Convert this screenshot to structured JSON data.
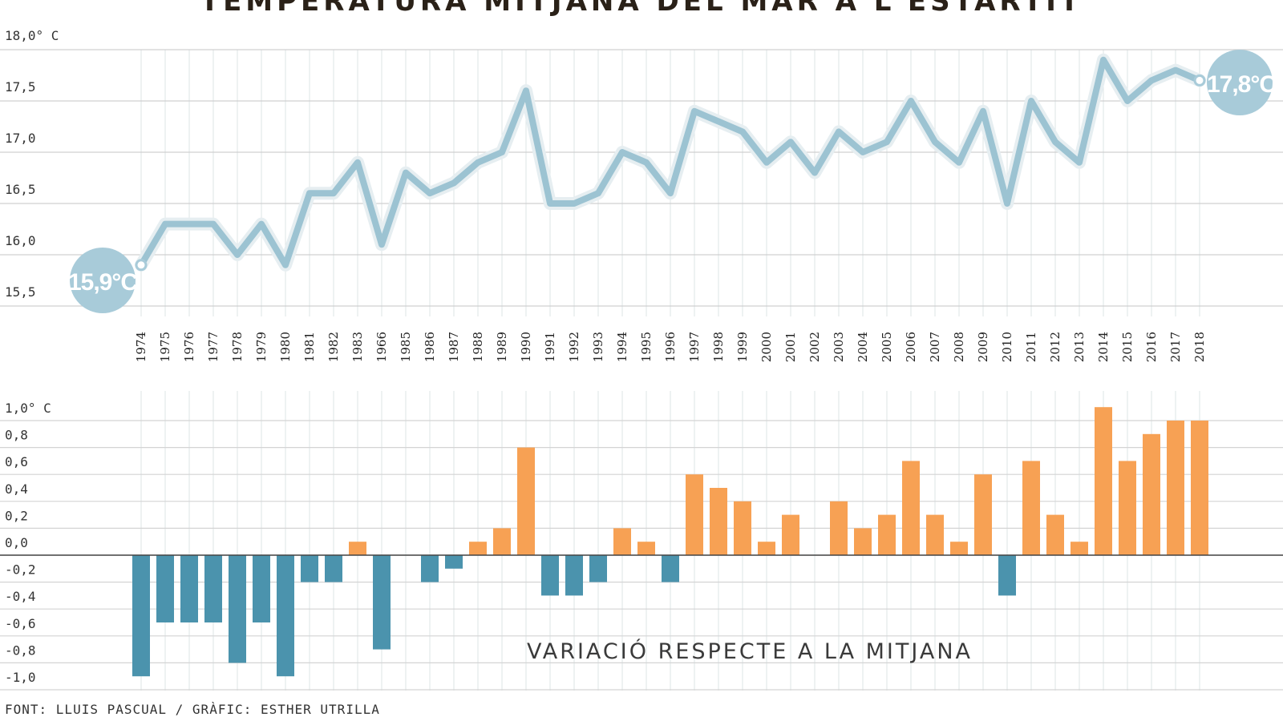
{
  "chart_data": [
    {
      "type": "line",
      "title": "TEMPERATURA MITJANA DEL MAR A L'ESTARTIT",
      "x": [
        "1974",
        "1975",
        "1976",
        "1977",
        "1978",
        "1979",
        "1980",
        "1981",
        "1982",
        "1983",
        "1966",
        "1985",
        "1986",
        "1987",
        "1988",
        "1989",
        "1990",
        "1991",
        "1992",
        "1993",
        "1994",
        "1995",
        "1996",
        "1997",
        "1998",
        "1999",
        "2000",
        "2001",
        "2002",
        "2003",
        "2004",
        "2005",
        "2006",
        "2007",
        "2008",
        "2009",
        "2010",
        "2011",
        "2012",
        "2013",
        "2014",
        "2015",
        "2016",
        "2017",
        "2018"
      ],
      "values": [
        15.9,
        16.3,
        16.3,
        16.3,
        16.0,
        16.3,
        15.9,
        16.6,
        16.6,
        16.9,
        16.1,
        16.8,
        16.6,
        16.7,
        16.9,
        17.0,
        17.6,
        16.5,
        16.5,
        16.6,
        17.0,
        16.9,
        16.6,
        17.4,
        17.3,
        17.2,
        16.9,
        17.1,
        16.8,
        17.2,
        17.0,
        17.1,
        17.5,
        17.1,
        16.9,
        17.4,
        16.5,
        17.5,
        17.1,
        16.9,
        17.9,
        17.5,
        17.7,
        17.8,
        17.7
      ],
      "ylim": [
        15.5,
        18.0
      ],
      "y_ticks": [
        "18,0° C",
        "17,5",
        "17,0",
        "16,5",
        "16,0",
        "15,5"
      ],
      "y_tick_values": [
        18.0,
        17.5,
        17.0,
        16.5,
        16.0,
        15.5
      ],
      "annotations": [
        "15,9°C",
        "17,8°C"
      ],
      "line_color": "#9cc3d2"
    },
    {
      "type": "bar",
      "title": "VARIACIÓ RESPECTE A LA MITJANA",
      "x": [
        "1974",
        "1975",
        "1976",
        "1977",
        "1978",
        "1979",
        "1980",
        "1981",
        "1982",
        "1983",
        "1966",
        "1985",
        "1986",
        "1987",
        "1988",
        "1989",
        "1990",
        "1991",
        "1992",
        "1993",
        "1994",
        "1995",
        "1996",
        "1997",
        "1998",
        "1999",
        "2000",
        "2001",
        "2002",
        "2003",
        "2004",
        "2005",
        "2006",
        "2007",
        "2008",
        "2009",
        "2010",
        "2011",
        "2012",
        "2013",
        "2014",
        "2015",
        "2016",
        "2017",
        "2018"
      ],
      "values": [
        -0.9,
        -0.5,
        -0.5,
        -0.5,
        -0.8,
        -0.5,
        -0.9,
        -0.2,
        -0.2,
        0.1,
        -0.7,
        0,
        -0.2,
        -0.1,
        0.1,
        0.2,
        0.8,
        -0.3,
        -0.3,
        -0.2,
        0.2,
        0.1,
        -0.2,
        0.6,
        0.5,
        0.4,
        0.1,
        0.3,
        0,
        0.4,
        0.2,
        0.3,
        0.7,
        0.3,
        0.1,
        0.6,
        -0.3,
        0.7,
        0.3,
        0.1,
        1.1,
        0.7,
        0.9,
        1.0,
        1.0
      ],
      "ylim": [
        -1.0,
        1.0
      ],
      "y_ticks": [
        "1,0° C",
        "0,8",
        "0,6",
        "0,4",
        "0,2",
        "0,0",
        "-0,2",
        "-0,4",
        "-0,6",
        "-0,8",
        "-1,0"
      ],
      "y_tick_values": [
        1.0,
        0.8,
        0.6,
        0.4,
        0.2,
        0.0,
        -0.2,
        -0.4,
        -0.6,
        -0.8,
        -1.0
      ],
      "positive_color": "#f7a154",
      "negative_color": "#4b93ad"
    }
  ],
  "source": "FONT: LLUIS PASCUAL / GRÀFIC: ESTHER UTRILLA"
}
